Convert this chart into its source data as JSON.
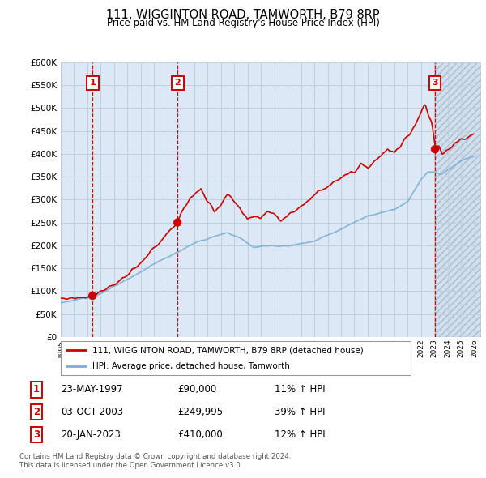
{
  "title": "111, WIGGINTON ROAD, TAMWORTH, B79 8RP",
  "subtitle": "Price paid vs. HM Land Registry's House Price Index (HPI)",
  "legend_line1": "111, WIGGINTON ROAD, TAMWORTH, B79 8RP (detached house)",
  "legend_line2": "HPI: Average price, detached house, Tamworth",
  "footer1": "Contains HM Land Registry data © Crown copyright and database right 2024.",
  "footer2": "This data is licensed under the Open Government Licence v3.0.",
  "transactions": [
    {
      "num": 1,
      "date": "1997-05-23",
      "price": 90000,
      "label": "23-MAY-1997",
      "amount": "£90,000",
      "pct": "11% ↑ HPI"
    },
    {
      "num": 2,
      "date": "2003-10-03",
      "price": 249995,
      "label": "03-OCT-2003",
      "amount": "£249,995",
      "pct": "39% ↑ HPI"
    },
    {
      "num": 3,
      "date": "2023-01-20",
      "price": 410000,
      "label": "20-JAN-2023",
      "amount": "£410,000",
      "pct": "12% ↑ HPI"
    }
  ],
  "ylim": [
    0,
    600000
  ],
  "yticks": [
    0,
    50000,
    100000,
    150000,
    200000,
    250000,
    300000,
    350000,
    400000,
    450000,
    500000,
    550000,
    600000
  ],
  "red_color": "#cc0000",
  "blue_color": "#7aafd4",
  "shade_color": "#dce8f5",
  "hatch_color": "#c8d8ea",
  "grid_color": "#c0cfe0",
  "bg_color": "#ffffff",
  "plot_bg": "#dce8f5"
}
